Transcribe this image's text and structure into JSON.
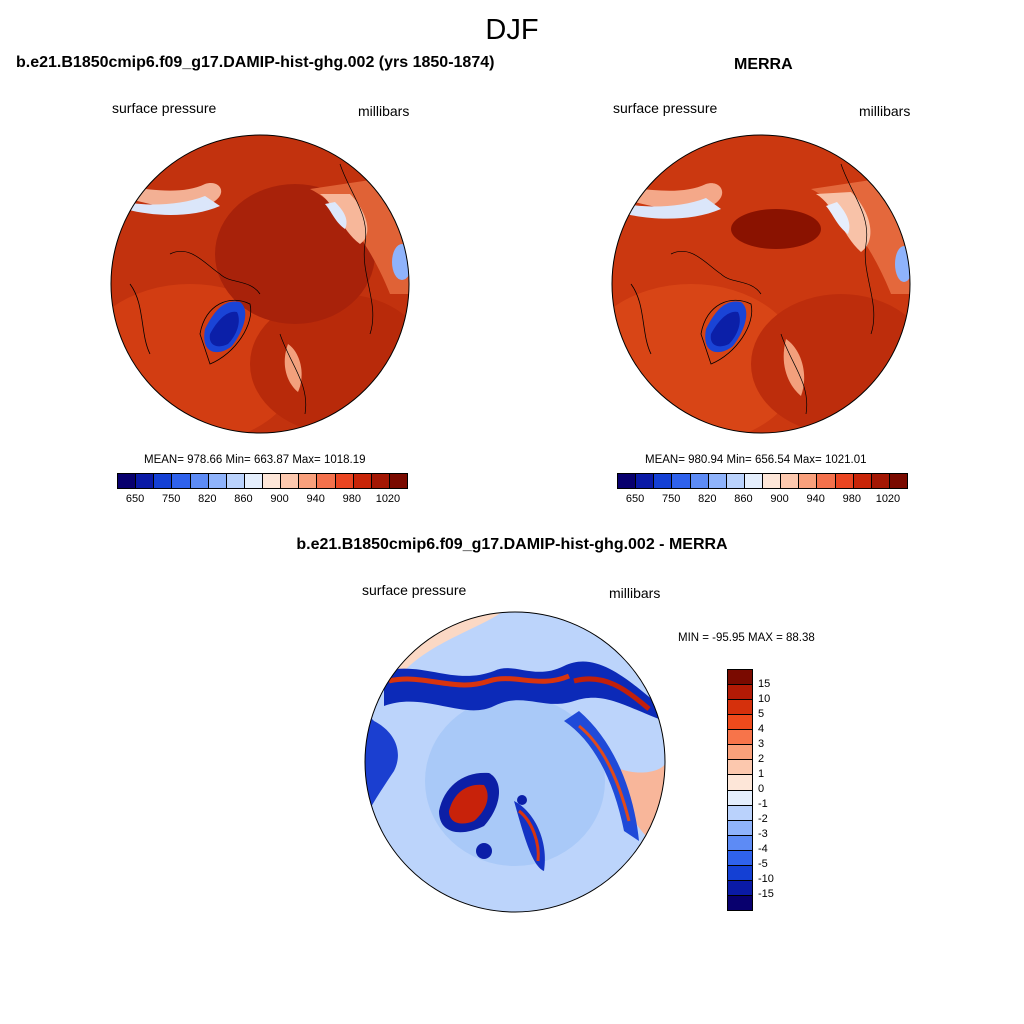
{
  "season": "DJF",
  "panels": {
    "model": {
      "title": "b.e21.B1850cmip6.f09_g17.DAMIP-hist-ghg.002 (yrs 1850-1874)",
      "left_label": "surface pressure",
      "right_label": "millibars",
      "stats": "MEAN= 978.66  Min= 663.87  Max= 1018.19"
    },
    "obs": {
      "title": "MERRA",
      "left_label": "surface pressure",
      "right_label": "millibars",
      "stats": "MEAN= 980.94  Min= 656.54  Max= 1021.01"
    },
    "diff": {
      "title": "b.e21.B1850cmip6.f09_g17.DAMIP-hist-ghg.002 - MERRA",
      "left_label": "surface pressure",
      "right_label": "millibars",
      "minmax": "MIN = -95.95 MAX =  88.38"
    }
  },
  "colorbar_abs": {
    "tick_labels": [
      "650",
      "750",
      "820",
      "860",
      "900",
      "940",
      "980",
      "1020"
    ],
    "colors": [
      "#08006e",
      "#0a1aa6",
      "#1440d4",
      "#2f62ec",
      "#5d8bf5",
      "#8fb3fb",
      "#bad2fc",
      "#e4eefc",
      "#fde6d8",
      "#fcc8ae",
      "#f9a07c",
      "#f4714c",
      "#ea4521",
      "#c82508",
      "#a31704",
      "#7a0a00"
    ]
  },
  "colorbar_diff": {
    "tick_labels": [
      "15",
      "10",
      "5",
      "4",
      "3",
      "2",
      "1",
      "0",
      "-1",
      "-2",
      "-3",
      "-4",
      "-5",
      "-10",
      "-15"
    ],
    "colors": [
      "#7a0a00",
      "#b21a05",
      "#d5300c",
      "#ef4a1c",
      "#f7744a",
      "#faa07a",
      "#fcc8ae",
      "#fde6d8",
      "#e4eefc",
      "#bad2fc",
      "#8fb3fb",
      "#5d8bf5",
      "#2f62ec",
      "#1440d4",
      "#0a1aa6",
      "#08006e"
    ]
  },
  "map_colors": {
    "dominant_model": "#b82a0a",
    "dominant_obs": "#c3300d",
    "greenland": "#1540d0",
    "diff_background": "#a9c9f8"
  }
}
